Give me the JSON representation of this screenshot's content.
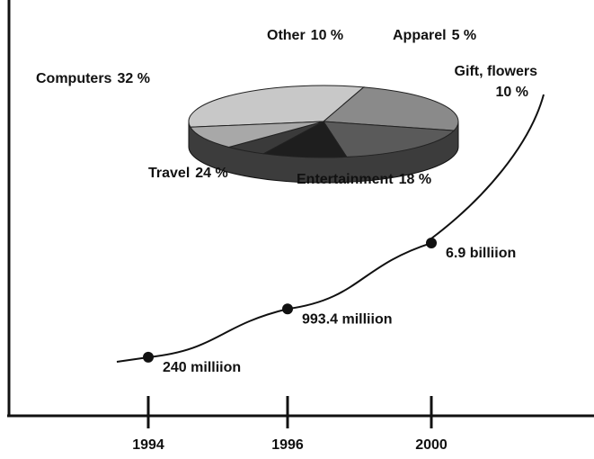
{
  "chart_data": [
    {
      "type": "line",
      "categories": [
        "1994",
        "1996",
        "2000"
      ],
      "values": [
        240,
        993.4,
        6900
      ],
      "value_labels": [
        "240 milliion",
        "993.4 milliion",
        "6.9 billiion"
      ],
      "color": "#111111",
      "log_scale": true,
      "ylim": [
        100,
        100000
      ]
    },
    {
      "type": "pie",
      "categories": [
        "Computers",
        "Travel",
        "Entertainment",
        "Gift, flowers",
        "Apparel",
        "Other"
      ],
      "values": [
        32,
        24,
        18,
        10,
        5,
        10
      ],
      "value_labels": [
        "32 %",
        "24 %",
        "18 %",
        "10 %",
        "5 %",
        "10 %"
      ],
      "colors": [
        "#c8c8c8",
        "#8a8a8a",
        "#5a5a5a",
        "#1e1e1e",
        "#3a3a3a",
        "#a8a8a8"
      ]
    }
  ]
}
